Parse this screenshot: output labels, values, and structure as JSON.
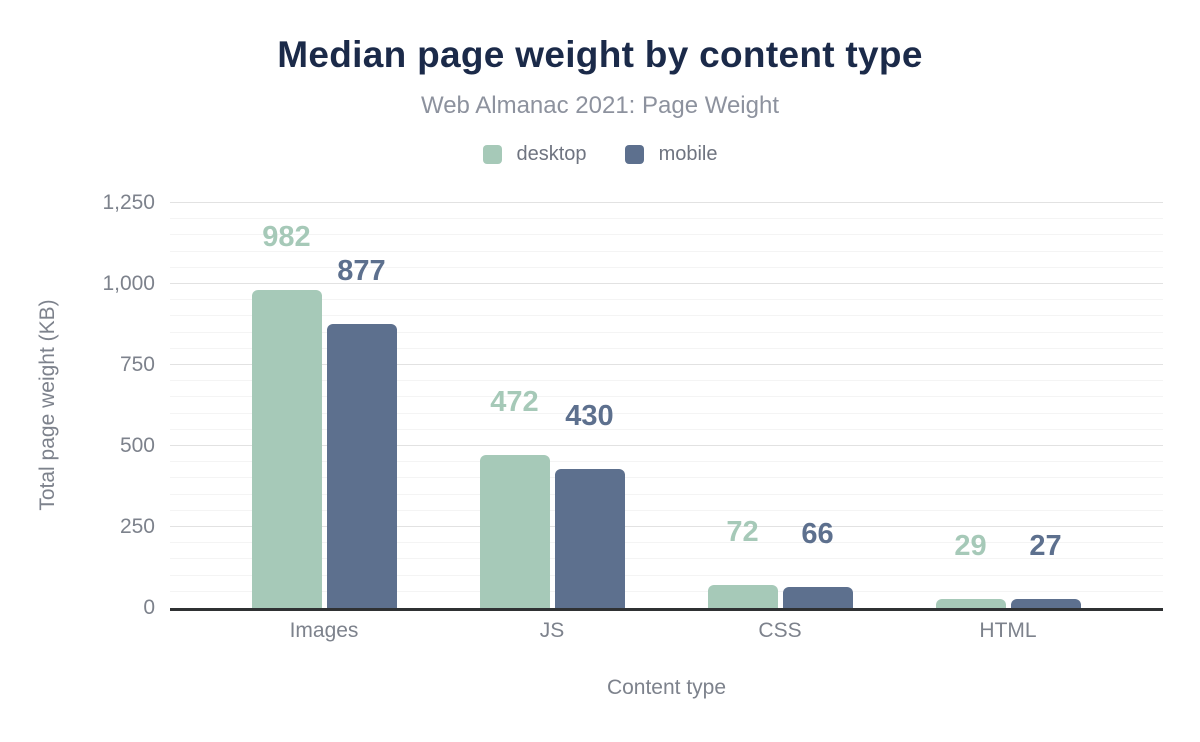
{
  "header": {
    "title": "Median page weight by content type",
    "subtitle": "Web Almanac 2021: Page Weight"
  },
  "legend": [
    {
      "label": "desktop",
      "color": "#a6c9b8"
    },
    {
      "label": "mobile",
      "color": "#5d708e"
    }
  ],
  "chart_data": {
    "type": "bar",
    "title": "Median page weight by content type",
    "subtitle": "Web Almanac 2021: Page Weight",
    "categories": [
      "Images",
      "JS",
      "CSS",
      "HTML"
    ],
    "series": [
      {
        "name": "desktop",
        "color": "#a6c9b8",
        "values": [
          982,
          472,
          72,
          29
        ]
      },
      {
        "name": "mobile",
        "color": "#5d708e",
        "values": [
          877,
          430,
          66,
          27
        ]
      }
    ],
    "xlabel": "Content type",
    "ylabel": "Total page weight (KB)",
    "ylim": [
      0,
      1250
    ],
    "yticks": [
      0,
      250,
      500,
      750,
      1000,
      1250
    ],
    "ytick_labels": [
      "0",
      "250",
      "500",
      "750",
      "1,000",
      "1,250"
    ],
    "minor_grid_step": 50,
    "grid": true,
    "legend_position": "top",
    "data_labels": true
  },
  "colors": {
    "title": "#1b2a49",
    "subtitle": "#8d929e",
    "axis_text": "#7d828c",
    "axis_line": "#2f3133",
    "grid_major": "#e2e2e2",
    "grid_minor": "#f4f4f4",
    "background": "#ffffff"
  }
}
